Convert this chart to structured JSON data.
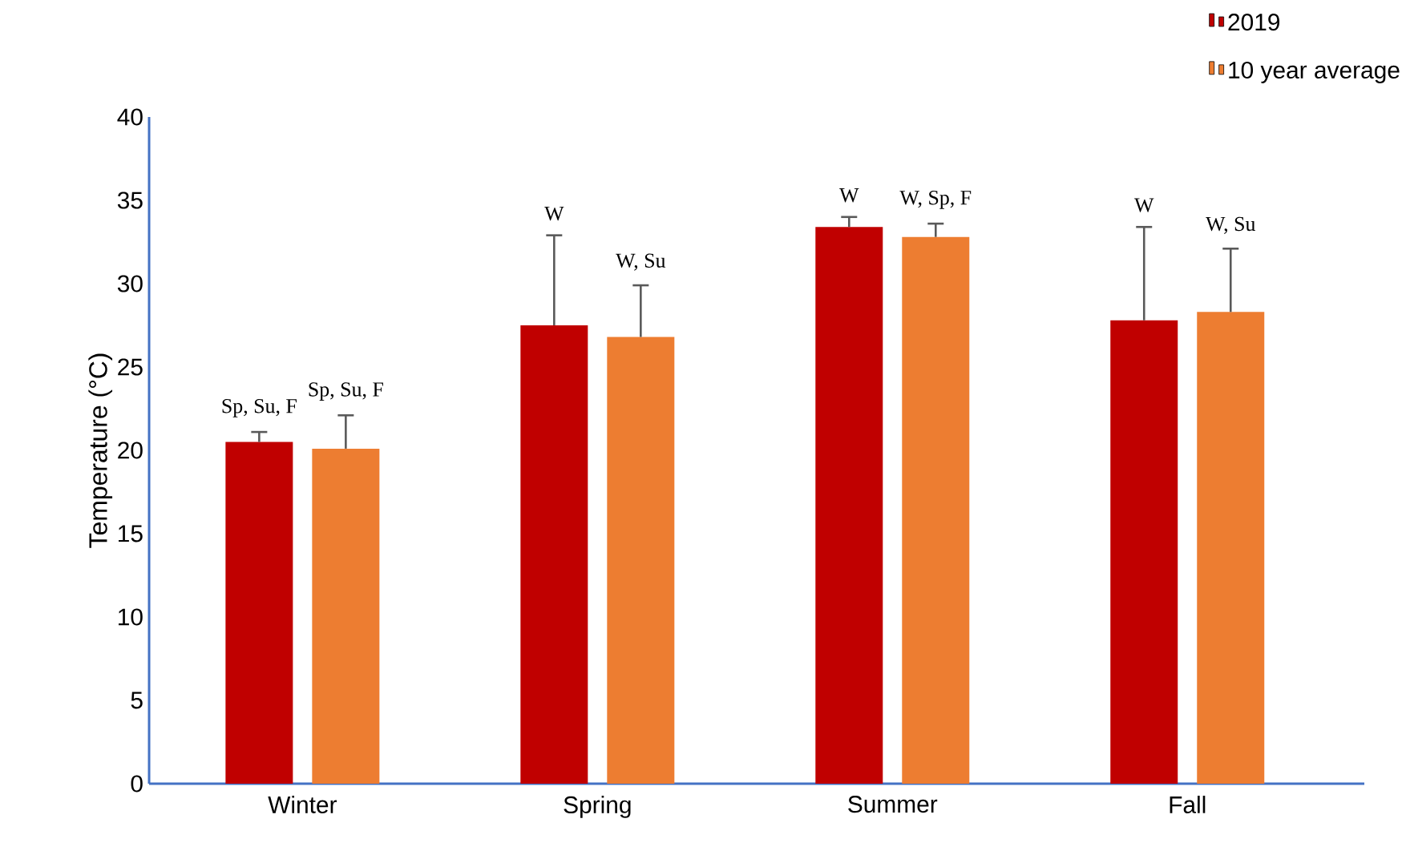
{
  "chart_data": {
    "type": "bar",
    "ylabel": "Temperature (°C)",
    "categories": [
      "Winter",
      "Spring",
      "Summer",
      "Fall"
    ],
    "series": [
      {
        "name": "2019",
        "color": "#c00000",
        "values": [
          20.5,
          27.5,
          33.4,
          27.8
        ],
        "errors": [
          [
            20.5,
            21.1
          ],
          [
            27.5,
            32.9
          ],
          [
            33.4,
            34.0
          ],
          [
            27.8,
            33.4
          ]
        ]
      },
      {
        "name": "10 year average",
        "color": "#ed7d31",
        "values": [
          20.1,
          26.8,
          32.8,
          28.3
        ],
        "errors": [
          [
            20.1,
            22.1
          ],
          [
            26.8,
            29.9
          ],
          [
            32.8,
            33.6
          ],
          [
            28.3,
            32.1
          ]
        ]
      }
    ],
    "ylim": [
      0,
      40
    ],
    "yticks": [
      0,
      5,
      10,
      15,
      20,
      25,
      30,
      35,
      40
    ],
    "annotations": [
      "Sp, Su, F",
      "Sp, Su, F",
      "W",
      "W, Su",
      "W",
      "W, Sp, F",
      "W",
      "W, Su"
    ],
    "legend": "top right",
    "grid": false
  }
}
